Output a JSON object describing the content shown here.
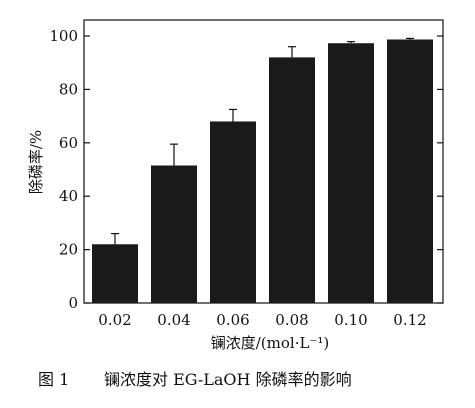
{
  "chart_data": {
    "type": "bar",
    "categories": [
      "0.02",
      "0.04",
      "0.06",
      "0.08",
      "0.10",
      "0.12"
    ],
    "values": [
      22,
      51.5,
      68,
      92,
      97.3,
      98.7
    ],
    "error_bars": [
      4,
      8,
      4.5,
      4,
      0.6,
      0.4
    ],
    "xlabel": "镧浓度/(mol·L⁻¹)",
    "ylabel": "除磷率/%",
    "ylim": [
      0,
      106
    ],
    "yticks": [
      0,
      20,
      40,
      60,
      80,
      100
    ],
    "grid": false,
    "bar_color": "#1a1a1a"
  },
  "caption": {
    "label": "图 1",
    "text": "镧浓度对 EG-LaOH 除磷率的影响"
  }
}
